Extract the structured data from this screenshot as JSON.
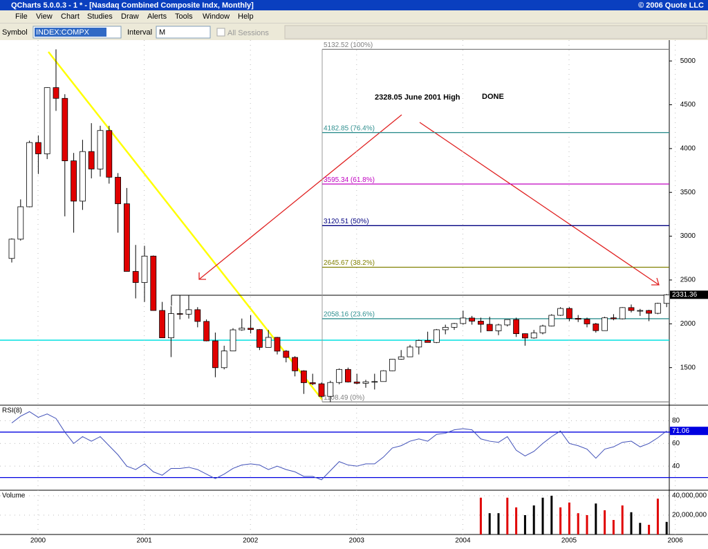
{
  "window": {
    "title": "QCharts 5.0.0.3 - 1 * - [Nasdaq Combined Composite Indx, Monthly]",
    "copyright": "© 2006 Quote LLC"
  },
  "menu": [
    "File",
    "View",
    "Chart",
    "Studies",
    "Draw",
    "Alerts",
    "Tools",
    "Window",
    "Help"
  ],
  "toolbar": {
    "symbol_label": "Symbol",
    "symbol": "INDEX:COMPX",
    "interval_label": "Interval",
    "interval": "M",
    "sessions": "All Sessions"
  },
  "chart_data": [
    {
      "type": "candlestick",
      "open": [
        2746,
        2966,
        3336,
        4069,
        3940,
        4696,
        4573,
        3860,
        3400,
        3966,
        3767,
        4206,
        3673,
        3370,
        2598,
        2471,
        2773,
        2152,
        1840,
        2116,
        2110,
        2161,
        2027,
        1805,
        1499,
        1690,
        1931,
        1950,
        1934,
        1731,
        1845,
        1688,
        1616,
        1463,
        1328,
        1315,
        1172,
        1330,
        1479,
        1336,
        1321,
        1338,
        1341,
        1464,
        1596,
        1623,
        1735,
        1810,
        1787,
        1932,
        1960,
        2003,
        2066,
        2030,
        1994,
        1920,
        1987,
        2048,
        1887,
        1838,
        1897,
        1975,
        2097,
        2175,
        2062,
        2052,
        1999,
        1922,
        2068,
        2057,
        2185,
        2152,
        2152,
        2120,
        2233
      ],
      "high": [
        2975,
        3420,
        4090,
        4150,
        4700,
        5132,
        4620,
        3950,
        4100,
        4290,
        4260,
        4260,
        3720,
        3550,
        2900,
        2890,
        2780,
        2250,
        2200,
        2330,
        2328,
        2190,
        2050,
        1900,
        1750,
        1950,
        2060,
        2100,
        1940,
        1930,
        1850,
        1700,
        1630,
        1470,
        1430,
        1330,
        1350,
        1490,
        1500,
        1430,
        1360,
        1430,
        1470,
        1600,
        1700,
        1760,
        1820,
        1910,
        1940,
        1990,
        2010,
        2150,
        2090,
        2070,
        2080,
        2000,
        2050,
        2070,
        1890,
        1930,
        1990,
        2110,
        2190,
        2190,
        2100,
        2070,
        2010,
        2080,
        2110,
        2190,
        2220,
        2170,
        2160,
        2240,
        2340
      ],
      "low": [
        2700,
        2950,
        3330,
        3710,
        3880,
        4430,
        3227,
        3040,
        3300,
        3660,
        3680,
        3600,
        3040,
        2600,
        2290,
        2250,
        2150,
        1840,
        1620,
        2050,
        2060,
        1960,
        1800,
        1390,
        1480,
        1690,
        1920,
        1890,
        1700,
        1730,
        1650,
        1560,
        1400,
        1200,
        1300,
        1160,
        1108,
        1310,
        1330,
        1310,
        1270,
        1250,
        1340,
        1460,
        1590,
        1620,
        1650,
        1790,
        1780,
        1880,
        1930,
        1990,
        1990,
        1900,
        1930,
        1870,
        1970,
        1850,
        1750,
        1830,
        1880,
        1970,
        2090,
        2030,
        2020,
        1960,
        1900,
        1920,
        2040,
        2050,
        2130,
        2090,
        2030,
        2110,
        2190
      ],
      "close": [
        2966,
        3336,
        4069,
        3940,
        4696,
        4573,
        3860,
        3400,
        3966,
        3767,
        4206,
        3673,
        3370,
        2598,
        2471,
        2773,
        2152,
        1840,
        2116,
        2110,
        2161,
        2027,
        1805,
        1499,
        1690,
        1931,
        1950,
        1934,
        1731,
        1845,
        1688,
        1616,
        1463,
        1328,
        1315,
        1172,
        1330,
        1479,
        1336,
        1321,
        1338,
        1341,
        1464,
        1596,
        1623,
        1735,
        1810,
        1787,
        1932,
        1960,
        2003,
        2066,
        2030,
        1994,
        1920,
        1987,
        2048,
        1887,
        1838,
        1897,
        1975,
        2097,
        2175,
        2062,
        2052,
        1999,
        1922,
        2068,
        2057,
        2185,
        2152,
        2152,
        2120,
        2233,
        2331
      ],
      "up_color": "#ffffff",
      "down_color": "#e00000",
      "ylim": [
        1079,
        5238
      ],
      "yticks": [
        1500,
        2000,
        2500,
        3000,
        3500,
        4000,
        4500,
        5000
      ],
      "xlim": [
        1999.642,
        2005.944
      ],
      "xticks": [
        2000,
        2001,
        2002,
        2003,
        2004,
        2005,
        2006
      ],
      "fib_levels": [
        {
          "value": 5132.52,
          "label": "5132.52 (100%)"
        },
        {
          "value": 4182.85,
          "label": "4182.85 (76.4%)"
        },
        {
          "value": 3595.34,
          "label": "3595.34 (61.8%)"
        },
        {
          "value": 3120.51,
          "label": "3120.51 (50%)"
        },
        {
          "value": 2645.67,
          "label": "2645.67 (38.2%)"
        },
        {
          "value": 2058.16,
          "label": "2058.16 (23.6%)"
        },
        {
          "value": 1108.49,
          "label": "1108.49 (0%)"
        }
      ],
      "fib_colors": [
        "#808080",
        "#2f8f8f",
        "#c000c0",
        "#000080",
        "#808000",
        "#2f8f8f",
        "#808080"
      ],
      "annotations": [
        "2328.05 June 2001 High",
        "DONE"
      ],
      "last_price": 2331.36
    },
    {
      "type": "line",
      "title": "RSI(8)",
      "values": [
        78,
        84,
        88,
        83,
        86,
        82,
        70,
        60,
        66,
        62,
        66,
        58,
        50,
        40,
        37,
        42,
        35,
        32,
        38,
        38,
        39,
        37,
        33,
        29,
        33,
        38,
        41,
        42,
        41,
        37,
        40,
        37,
        35,
        31,
        31,
        28,
        36,
        44,
        41,
        40,
        42,
        42,
        48,
        56,
        58,
        62,
        64,
        62,
        68,
        69,
        72,
        73,
        72,
        64,
        62,
        61,
        66,
        54,
        49,
        53,
        60,
        66,
        71,
        60,
        58,
        55,
        47,
        55,
        57,
        61,
        62,
        57,
        60,
        65,
        71
      ],
      "color": "#4050b8",
      "ylim": [
        19.4,
        93.1
      ],
      "yticks": [
        40,
        60,
        80
      ],
      "levels": [
        70,
        30
      ],
      "last_value": 71.06
    },
    {
      "type": "bar",
      "title": "Volume",
      "values": [
        null,
        null,
        null,
        null,
        null,
        null,
        null,
        null,
        null,
        null,
        null,
        null,
        null,
        null,
        null,
        null,
        null,
        null,
        null,
        null,
        null,
        null,
        null,
        null,
        null,
        null,
        null,
        null,
        null,
        null,
        null,
        null,
        null,
        null,
        null,
        null,
        null,
        null,
        null,
        null,
        null,
        null,
        null,
        null,
        null,
        null,
        null,
        null,
        null,
        null,
        null,
        null,
        null,
        38000000,
        22000000,
        22000000,
        38000000,
        28000000,
        20000000,
        30000000,
        38000000,
        40000000,
        28000000,
        33000000,
        22000000,
        20000000,
        32000000,
        25000000,
        15000000,
        30000000,
        23000000,
        12000000,
        10000000,
        37000000,
        13000000
      ],
      "colors": [
        null,
        null,
        null,
        null,
        null,
        null,
        null,
        null,
        null,
        null,
        null,
        null,
        null,
        null,
        null,
        null,
        null,
        null,
        null,
        null,
        null,
        null,
        null,
        null,
        null,
        null,
        null,
        null,
        null,
        null,
        null,
        null,
        null,
        null,
        null,
        null,
        null,
        null,
        null,
        null,
        null,
        null,
        null,
        null,
        null,
        null,
        null,
        null,
        null,
        null,
        null,
        null,
        null,
        "#e00000",
        "#000000",
        "#000000",
        "#e00000",
        "#e00000",
        "#000000",
        "#000000",
        "#000000",
        "#000000",
        "#e00000",
        "#e00000",
        "#e00000",
        "#e00000",
        "#000000",
        "#e00000",
        "#e00000",
        "#e00000",
        "#000000",
        "#000000",
        "#e00000",
        "#e00000",
        "#000000"
      ],
      "ylim": [
        0,
        45000000
      ],
      "yticks": [
        {
          "value": 20000000,
          "label": "20,000,000"
        },
        {
          "value": 40000000,
          "label": "40,000,000"
        }
      ]
    }
  ]
}
